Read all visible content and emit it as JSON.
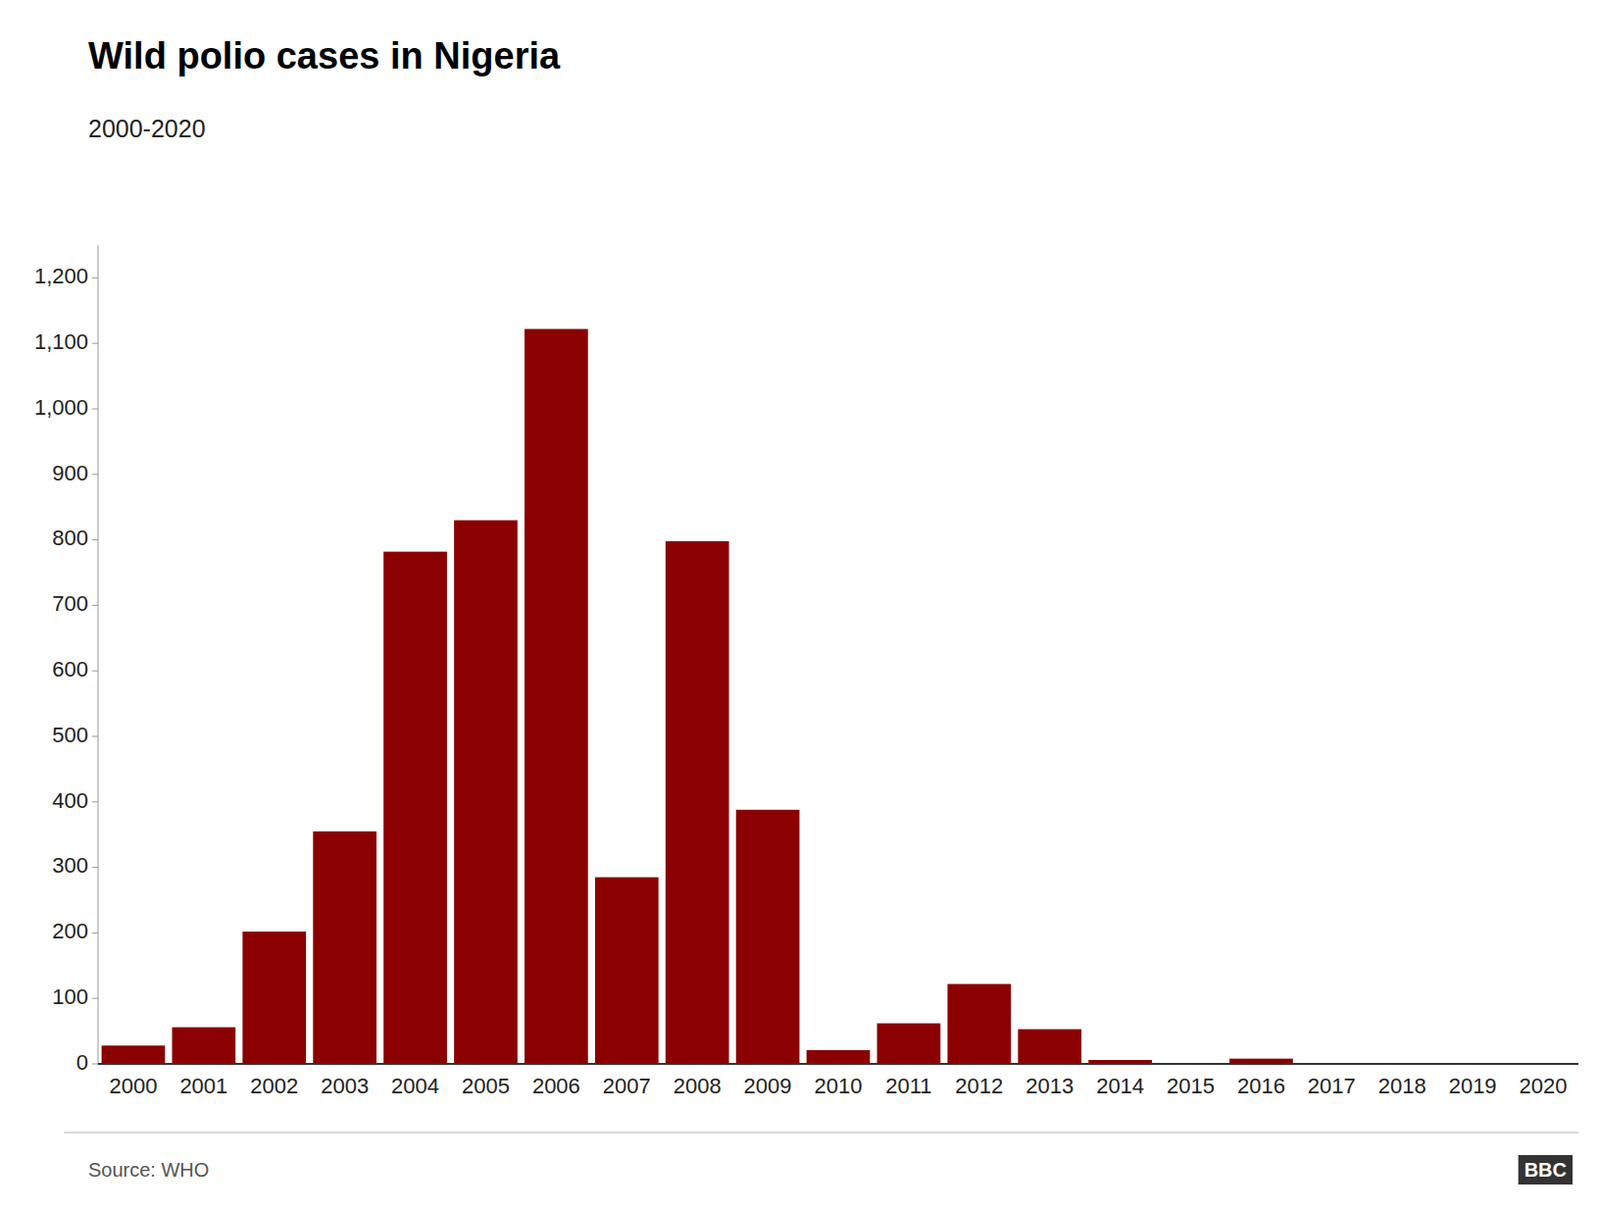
{
  "chart_data": {
    "type": "bar",
    "title": "Wild polio cases in Nigeria",
    "subtitle": "2000-2020",
    "source": "Source: WHO",
    "annotations": [
      "BBC"
    ],
    "categories": [
      "2000",
      "2001",
      "2002",
      "2003",
      "2004",
      "2005",
      "2006",
      "2007",
      "2008",
      "2009",
      "2010",
      "2011",
      "2012",
      "2013",
      "2014",
      "2015",
      "2016",
      "2017",
      "2018",
      "2019",
      "2020"
    ],
    "values": [
      28,
      56,
      202,
      355,
      782,
      830,
      1122,
      285,
      798,
      388,
      21,
      62,
      122,
      53,
      6,
      0,
      8,
      0,
      0,
      0,
      0
    ],
    "color": "#8B0000",
    "ylim": [
      0,
      1250
    ],
    "yticks": [
      0,
      100,
      200,
      300,
      400,
      500,
      600,
      700,
      800,
      900,
      {
        "value": 1000,
        "label": "1,000"
      },
      {
        "value": 1100,
        "label": "1,100"
      },
      {
        "value": 1200,
        "label": "1,200"
      }
    ],
    "grid": false
  }
}
